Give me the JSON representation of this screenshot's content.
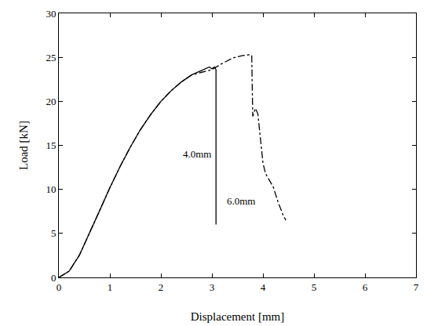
{
  "chart_data": {
    "type": "line",
    "x_label": "Displacement [mm]",
    "y_label": "Load [kN]",
    "xlim": [
      0,
      7
    ],
    "xticks": [
      0,
      1,
      2,
      3,
      4,
      5,
      6,
      7
    ],
    "ylim": [
      0,
      30
    ],
    "yticks": [
      0,
      5,
      10,
      15,
      20,
      25,
      30
    ],
    "grid": false,
    "series": [
      {
        "color": "#000000",
        "line_style": "solid",
        "x": [
          0,
          0.2,
          0.4,
          0.6,
          0.8,
          1.0,
          1.2,
          1.4,
          1.6,
          1.8,
          2.0,
          2.2,
          2.4,
          2.6,
          2.8,
          2.95,
          3.0,
          3.05,
          3.08,
          3.08
        ],
        "values": [
          0,
          0.7,
          2.5,
          5.0,
          7.6,
          10.2,
          12.6,
          14.8,
          16.8,
          18.5,
          20.0,
          21.2,
          22.2,
          23.0,
          23.5,
          23.9,
          23.7,
          23.9,
          23.6,
          6.0
        ]
      },
      {
        "color": "#000000",
        "line_style": "dashdot",
        "x": [
          0,
          0.2,
          0.4,
          0.6,
          0.8,
          1.0,
          1.2,
          1.4,
          1.6,
          1.8,
          2.0,
          2.2,
          2.4,
          2.6,
          2.8,
          3.0,
          3.2,
          3.4,
          3.6,
          3.75,
          3.78,
          3.8,
          3.85,
          3.9,
          4.0,
          4.05,
          4.2,
          4.3,
          4.4,
          4.45
        ],
        "values": [
          0,
          0.7,
          2.5,
          5.0,
          7.6,
          10.2,
          12.6,
          14.8,
          16.8,
          18.5,
          20.0,
          21.2,
          22.2,
          23.0,
          23.3,
          23.6,
          24.3,
          24.9,
          25.2,
          25.3,
          25.2,
          18.3,
          19.2,
          18.6,
          13.0,
          11.8,
          10.3,
          8.5,
          7.0,
          6.5
        ]
      }
    ],
    "annotations": [
      {
        "text": "4.0mm",
        "x": 3.02,
        "y": 14
      },
      {
        "text": "6.0mm",
        "x": 3.88,
        "y": 8.7
      }
    ]
  }
}
